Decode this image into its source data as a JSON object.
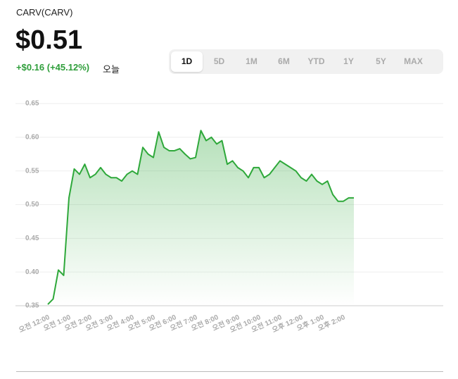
{
  "header": {
    "name": "CARV(CARV)",
    "price": "$0.51",
    "change": "+$0.16 (+45.12%)",
    "period": "오늘",
    "ranges": [
      "1D",
      "5D",
      "1M",
      "6M",
      "YTD",
      "1Y",
      "5Y",
      "MAX"
    ],
    "selected_range": 0
  },
  "chart_data": {
    "type": "line",
    "color": "#2ea83a",
    "area": true,
    "grid": true,
    "categories": [
      "오전 12:00",
      null,
      null,
      null,
      "오전 1:00",
      null,
      null,
      null,
      "오전 2:00",
      null,
      null,
      null,
      "오전 3:00",
      null,
      null,
      null,
      "오전 4:00",
      null,
      null,
      null,
      "오전 5:00",
      null,
      null,
      null,
      "오전 6:00",
      null,
      null,
      null,
      "오전 7:00",
      null,
      null,
      null,
      "오전 8:00",
      null,
      null,
      null,
      "오전 9:00",
      null,
      null,
      null,
      "오전 10:00",
      null,
      null,
      null,
      "오전 11:00",
      null,
      null,
      null,
      "오후 12:00",
      null,
      null,
      null,
      "오후 1:00",
      null,
      null,
      null,
      "오후 2:00",
      null,
      null
    ],
    "values": [
      0.352,
      0.36,
      0.403,
      0.395,
      0.51,
      0.553,
      0.545,
      0.56,
      0.54,
      0.545,
      0.555,
      0.545,
      0.54,
      0.54,
      0.535,
      0.545,
      0.55,
      0.545,
      0.585,
      0.575,
      0.57,
      0.608,
      0.585,
      0.58,
      0.58,
      0.583,
      0.575,
      0.568,
      0.57,
      0.61,
      0.595,
      0.6,
      0.59,
      0.595,
      0.56,
      0.565,
      0.555,
      0.55,
      0.54,
      0.555,
      0.555,
      0.54,
      0.545,
      0.555,
      0.565,
      0.56,
      0.555,
      0.55,
      0.54,
      0.535,
      0.545,
      0.535,
      0.53,
      0.535,
      0.515,
      0.505,
      0.505,
      0.51,
      0.51
    ],
    "ylim": [
      0.35,
      0.65
    ],
    "yticks": [
      0.35,
      {
        "value": 0.4,
        "label": "0.40"
      },
      0.45,
      {
        "value": 0.5,
        "label": "0.50"
      },
      0.55,
      {
        "value": 0.6,
        "label": "0.60"
      },
      0.65
    ]
  }
}
